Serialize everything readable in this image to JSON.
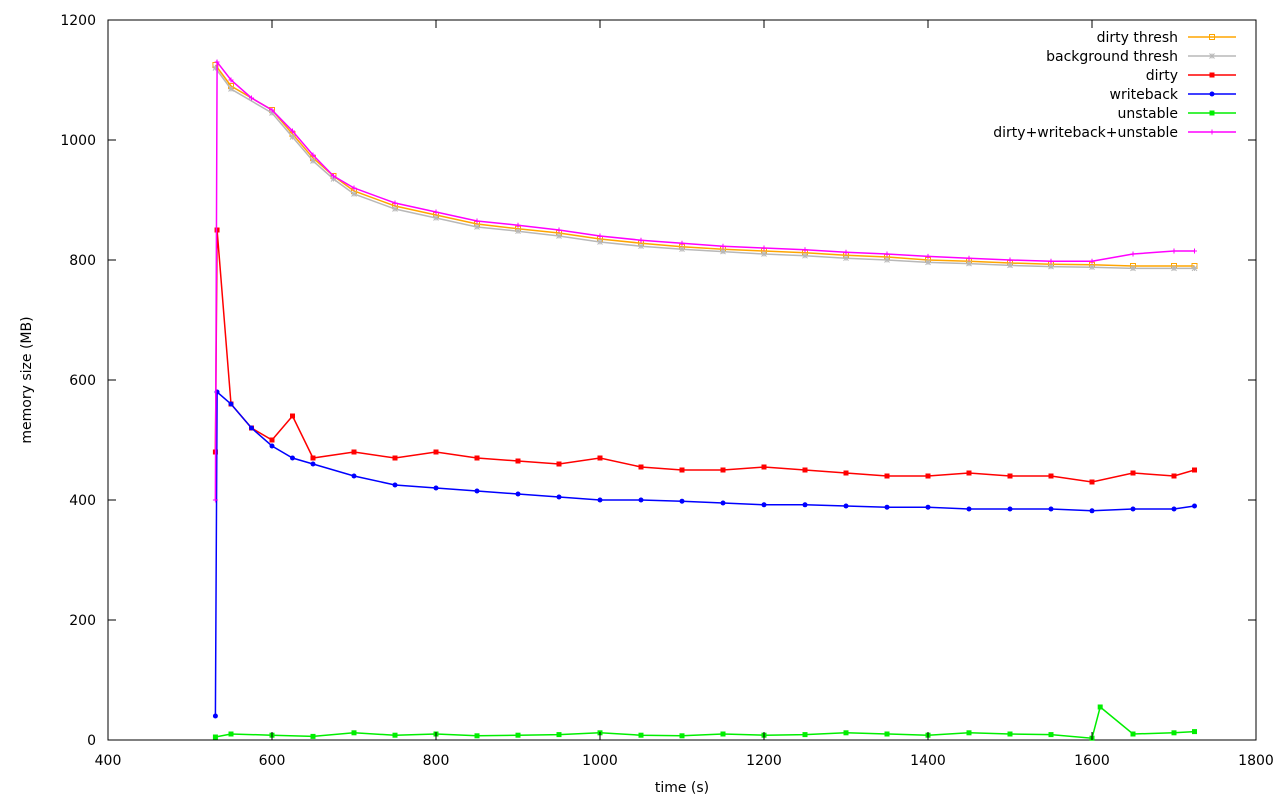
{
  "chart_data": {
    "type": "line",
    "title": "",
    "xlabel": "time (s)",
    "ylabel": "memory size (MB)",
    "xlim": [
      400,
      1800
    ],
    "ylim": [
      0,
      1200
    ],
    "x_ticks": [
      400,
      600,
      800,
      1000,
      1200,
      1400,
      1600,
      1800
    ],
    "y_ticks": [
      0,
      200,
      400,
      600,
      800,
      1000,
      1200
    ],
    "x_tick_labels": [
      "400",
      "600",
      "800",
      "1000",
      "1200",
      "1400",
      "1600",
      "1800"
    ],
    "y_tick_labels": [
      "0",
      "200",
      "400",
      "600",
      "800",
      "1000",
      "1200"
    ],
    "grid": false,
    "legend_position": "top-right",
    "series": [
      {
        "name": "dirty thresh",
        "color": "#ffa500",
        "marker": "square",
        "x": [
          531,
          550,
          600,
          625,
          650,
          675,
          700,
          750,
          800,
          850,
          900,
          950,
          1000,
          1050,
          1100,
          1150,
          1200,
          1250,
          1300,
          1350,
          1400,
          1450,
          1500,
          1550,
          1600,
          1650,
          1700,
          1725
        ],
        "y": [
          1125,
          1090,
          1050,
          1010,
          970,
          940,
          915,
          890,
          875,
          860,
          852,
          845,
          835,
          828,
          822,
          818,
          815,
          812,
          808,
          805,
          800,
          798,
          795,
          793,
          792,
          790,
          790,
          790
        ]
      },
      {
        "name": "background thresh",
        "color": "#b8b8b8",
        "marker": "star",
        "x": [
          531,
          550,
          600,
          625,
          650,
          675,
          700,
          750,
          800,
          850,
          900,
          950,
          1000,
          1050,
          1100,
          1150,
          1200,
          1250,
          1300,
          1350,
          1400,
          1450,
          1500,
          1550,
          1600,
          1650,
          1700,
          1725
        ],
        "y": [
          1120,
          1085,
          1045,
          1005,
          965,
          935,
          910,
          885,
          870,
          855,
          848,
          840,
          830,
          823,
          818,
          814,
          810,
          807,
          803,
          800,
          796,
          794,
          791,
          789,
          788,
          786,
          786,
          786
        ]
      },
      {
        "name": "dirty",
        "color": "#ff0000",
        "marker": "filled-square",
        "x": [
          531,
          533,
          550,
          575,
          600,
          625,
          650,
          700,
          750,
          800,
          850,
          900,
          950,
          1000,
          1050,
          1100,
          1150,
          1200,
          1250,
          1300,
          1350,
          1400,
          1450,
          1500,
          1550,
          1600,
          1650,
          1700,
          1725
        ],
        "y": [
          480,
          850,
          560,
          520,
          500,
          540,
          470,
          480,
          470,
          480,
          470,
          465,
          460,
          470,
          455,
          450,
          450,
          455,
          450,
          445,
          440,
          440,
          445,
          440,
          440,
          430,
          445,
          440,
          450
        ]
      },
      {
        "name": "writeback",
        "color": "#0000ff",
        "marker": "filled-circle",
        "x": [
          531,
          533,
          550,
          575,
          600,
          625,
          650,
          700,
          750,
          800,
          850,
          900,
          950,
          1000,
          1050,
          1100,
          1150,
          1200,
          1250,
          1300,
          1350,
          1400,
          1450,
          1500,
          1550,
          1600,
          1650,
          1700,
          1725
        ],
        "y": [
          40,
          580,
          560,
          520,
          490,
          470,
          460,
          440,
          425,
          420,
          415,
          410,
          405,
          400,
          400,
          398,
          395,
          392,
          392,
          390,
          388,
          388,
          385,
          385,
          385,
          382,
          385,
          385,
          390
        ]
      },
      {
        "name": "unstable",
        "color": "#00ee00",
        "marker": "filled-square",
        "x": [
          531,
          550,
          600,
          650,
          700,
          750,
          800,
          850,
          900,
          950,
          1000,
          1050,
          1100,
          1150,
          1200,
          1250,
          1300,
          1350,
          1400,
          1450,
          1500,
          1550,
          1600,
          1610,
          1650,
          1700,
          1725
        ],
        "y": [
          5,
          10,
          8,
          6,
          12,
          8,
          10,
          7,
          8,
          9,
          12,
          8,
          7,
          10,
          8,
          9,
          12,
          10,
          8,
          12,
          10,
          9,
          3,
          55,
          10,
          12,
          14
        ]
      },
      {
        "name": "dirty+writeback+unstable",
        "color": "#ff00ff",
        "marker": "plus",
        "x": [
          531,
          533,
          550,
          575,
          600,
          625,
          650,
          675,
          700,
          750,
          800,
          850,
          900,
          950,
          1000,
          1050,
          1100,
          1150,
          1200,
          1250,
          1300,
          1350,
          1400,
          1450,
          1500,
          1550,
          1600,
          1650,
          1700,
          1725
        ],
        "y": [
          400,
          1130,
          1100,
          1070,
          1050,
          1015,
          975,
          940,
          920,
          895,
          880,
          865,
          858,
          850,
          840,
          833,
          828,
          823,
          820,
          817,
          813,
          810,
          806,
          803,
          800,
          798,
          798,
          810,
          815,
          815
        ]
      }
    ]
  }
}
